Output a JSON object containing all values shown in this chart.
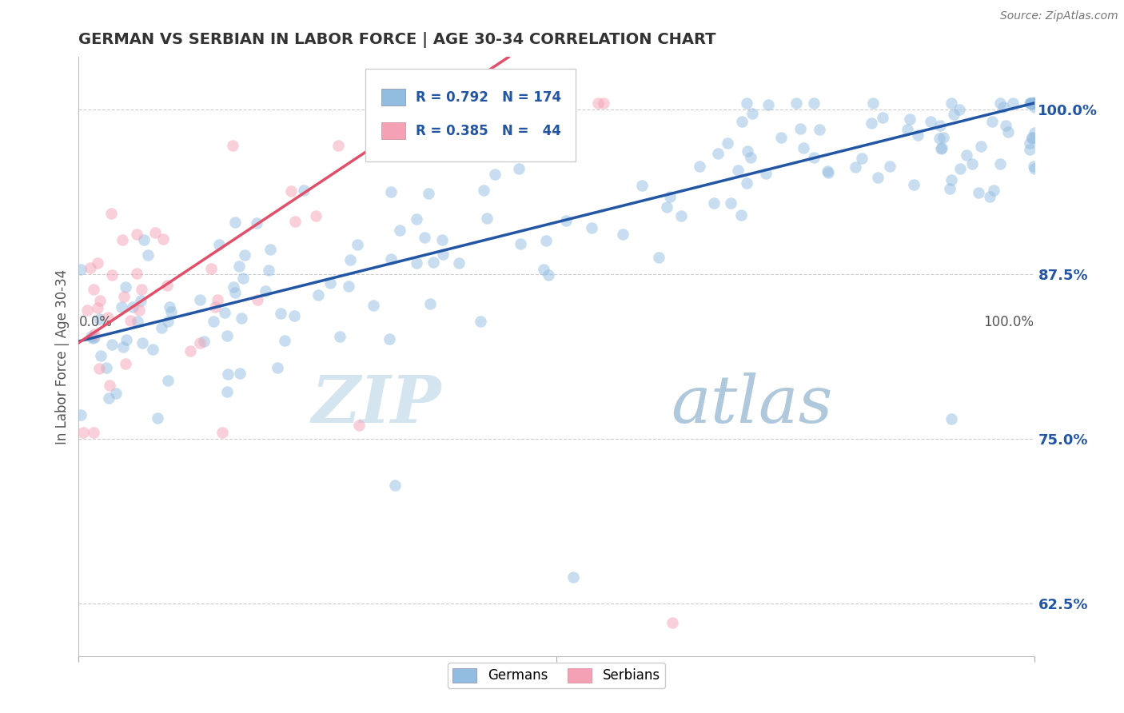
{
  "title": "GERMAN VS SERBIAN IN LABOR FORCE | AGE 30-34 CORRELATION CHART",
  "source": "Source: ZipAtlas.com",
  "ylabel": "In Labor Force | Age 30-34",
  "yticks": [
    0.625,
    0.75,
    0.875,
    1.0
  ],
  "ytick_labels": [
    "62.5%",
    "75.0%",
    "87.5%",
    "100.0%"
  ],
  "ylim": [
    0.585,
    1.04
  ],
  "xlim": [
    0.0,
    1.0
  ],
  "german_R": 0.792,
  "german_N": 174,
  "serbian_R": 0.385,
  "serbian_N": 44,
  "german_color": "#92bce0",
  "serbian_color": "#f4a0b5",
  "german_line_color": "#2255a4",
  "serbian_line_color": "#e0506a",
  "watermark_zip": "ZIP",
  "watermark_atlas": "atlas",
  "watermark_color_zip": "#dce8f0",
  "watermark_color_atlas": "#b8d0e8",
  "legend_german": "Germans",
  "legend_serbian": "Serbians",
  "background_color": "#ffffff",
  "title_color": "#333333",
  "title_fontsize": 14,
  "axis_label_color": "#555555",
  "grid_color": "#cccccc",
  "dot_size": 110,
  "dot_alpha": 0.5,
  "german_line_x0": 0.0,
  "german_line_y0": 0.824,
  "german_line_x1": 1.0,
  "german_line_y1": 1.005,
  "serbian_line_x0": 0.0,
  "serbian_line_y0": 0.823,
  "serbian_line_x1": 0.45,
  "serbian_line_y1": 1.04
}
